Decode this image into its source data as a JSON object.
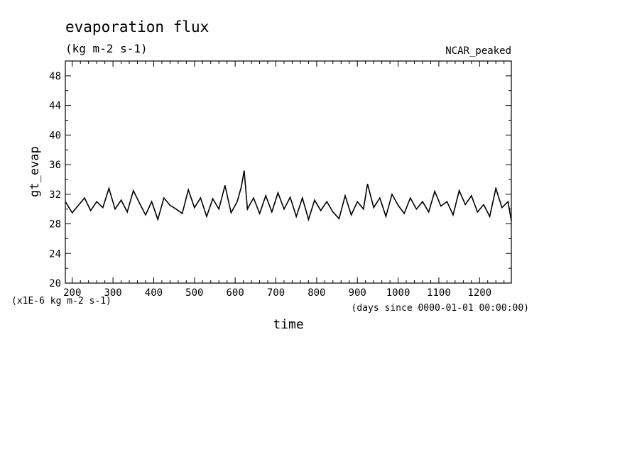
{
  "chart_data": {
    "type": "line",
    "title": "evaporation flux",
    "subtitle": "(kg m-2 s-1)",
    "dataset_label": "NCAR_peaked",
    "xlabel": "time",
    "x_units": "(days since 0000-01-01 00:00:00)",
    "ylabel": "gt_evap",
    "y_units": "(x1E-6 kg m-2 s-1)",
    "xlim": [
      183,
      1278
    ],
    "ylim": [
      20,
      50
    ],
    "x_ticks": [
      200,
      300,
      400,
      500,
      600,
      700,
      800,
      900,
      1000,
      1100,
      1200
    ],
    "y_ticks": [
      20,
      24,
      28,
      32,
      36,
      40,
      44,
      48
    ],
    "grid": false,
    "line_color": "#000000",
    "series": [
      {
        "x": [
          183,
          200,
          215,
          230,
          245,
          260,
          275,
          290,
          305,
          320,
          335,
          350,
          365,
          380,
          395,
          410,
          425,
          440,
          455,
          470,
          485,
          500,
          515,
          530,
          545,
          560,
          575,
          590,
          605,
          615,
          622,
          630,
          645,
          660,
          675,
          690,
          705,
          720,
          735,
          750,
          765,
          780,
          795,
          810,
          825,
          840,
          855,
          870,
          885,
          900,
          915,
          925,
          940,
          955,
          970,
          985,
          1000,
          1015,
          1030,
          1045,
          1060,
          1075,
          1090,
          1105,
          1120,
          1135,
          1150,
          1165,
          1180,
          1195,
          1210,
          1225,
          1240,
          1255,
          1270,
          1278
        ],
        "y": [
          31.0,
          29.5,
          30.5,
          31.5,
          29.8,
          31.0,
          30.2,
          32.8,
          30.0,
          31.2,
          29.6,
          32.5,
          30.8,
          29.2,
          31.0,
          28.6,
          31.5,
          30.5,
          30.0,
          29.4,
          32.6,
          30.2,
          31.5,
          29.0,
          31.4,
          30.0,
          33.2,
          29.5,
          31.0,
          33.0,
          35.2,
          30.0,
          31.5,
          29.4,
          31.8,
          29.6,
          32.2,
          30.0,
          31.6,
          29.0,
          31.5,
          28.6,
          31.2,
          29.8,
          31.0,
          29.6,
          28.7,
          31.8,
          29.2,
          31.0,
          30.0,
          33.4,
          30.2,
          31.5,
          29.0,
          32.0,
          30.5,
          29.4,
          31.5,
          30.0,
          31.0,
          29.6,
          32.4,
          30.4,
          31.0,
          29.2,
          32.5,
          30.6,
          31.8,
          29.6,
          30.6,
          29.0,
          32.8,
          30.2,
          31.0,
          28.4
        ]
      }
    ]
  }
}
